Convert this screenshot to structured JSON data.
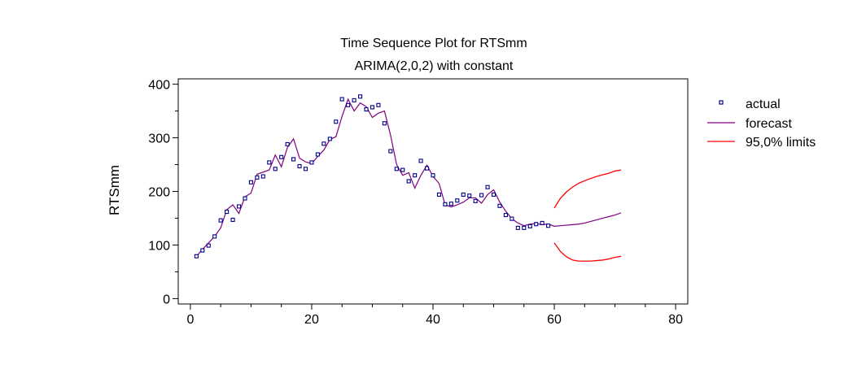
{
  "chart_data": {
    "type": "line",
    "title": "Time Sequence Plot for RTSmm",
    "subtitle": "ARIMA(2,0,2) with constant",
    "xlabel": "",
    "ylabel": "RTSmm",
    "xlim": [
      -2,
      82
    ],
    "ylim": [
      -10,
      410
    ],
    "x_ticks": [
      0,
      20,
      40,
      60,
      80
    ],
    "y_ticks": [
      0,
      100,
      200,
      300,
      400
    ],
    "x_tick_labels": [
      "0",
      "20",
      "40",
      "60",
      "80"
    ],
    "y_tick_labels": [
      "0",
      "100",
      "200",
      "300",
      "400"
    ],
    "grid": false,
    "legend_position": "right",
    "colors": {
      "actual": "#00008b",
      "forecast": "#800080",
      "limits": "#ff0000",
      "frame": "#000000"
    },
    "series": [
      {
        "name": "actual",
        "style": "markers",
        "x": [
          1,
          2,
          3,
          4,
          5,
          6,
          7,
          8,
          9,
          10,
          11,
          12,
          13,
          14,
          15,
          16,
          17,
          18,
          19,
          20,
          21,
          22,
          23,
          24,
          25,
          26,
          27,
          28,
          29,
          30,
          31,
          32,
          33,
          34,
          35,
          36,
          37,
          38,
          39,
          40,
          41,
          42,
          43,
          44,
          45,
          46,
          47,
          48,
          49,
          50,
          51,
          52,
          53,
          54,
          55,
          56,
          57,
          58,
          59
        ],
        "y": [
          79,
          90,
          99,
          116,
          146,
          162,
          147,
          172,
          187,
          217,
          226,
          228,
          254,
          242,
          264,
          288,
          260,
          247,
          242,
          254,
          269,
          289,
          298,
          330,
          372,
          361,
          370,
          377,
          353,
          357,
          361,
          327,
          275,
          242,
          240,
          219,
          230,
          257,
          243,
          230,
          194,
          176,
          177,
          183,
          194,
          192,
          182,
          193,
          208,
          194,
          173,
          156,
          149,
          132,
          132,
          135,
          139,
          141,
          136
        ]
      },
      {
        "name": "forecast",
        "style": "line",
        "x": [
          1,
          2,
          3,
          4,
          5,
          6,
          7,
          8,
          9,
          10,
          11,
          12,
          13,
          14,
          15,
          16,
          17,
          18,
          19,
          20,
          21,
          22,
          23,
          24,
          25,
          26,
          27,
          28,
          29,
          30,
          31,
          32,
          33,
          34,
          35,
          36,
          37,
          38,
          39,
          40,
          41,
          42,
          43,
          44,
          45,
          46,
          47,
          48,
          49,
          50,
          51,
          52,
          53,
          54,
          55,
          56,
          57,
          58,
          59,
          60,
          61,
          62,
          63,
          64,
          65,
          66,
          67,
          68,
          69,
          70,
          71
        ],
        "y": [
          79,
          92,
          104,
          116,
          132,
          166,
          175,
          159,
          190,
          197,
          232,
          236,
          240,
          268,
          246,
          282,
          298,
          262,
          255,
          252,
          265,
          277,
          297,
          302,
          340,
          372,
          350,
          365,
          358,
          338,
          346,
          350,
          305,
          250,
          230,
          235,
          206,
          230,
          249,
          228,
          215,
          175,
          171,
          175,
          180,
          188,
          188,
          178,
          194,
          203,
          180,
          163,
          149,
          141,
          136,
          139,
          140,
          138,
          139,
          135,
          136,
          137,
          138,
          139,
          141,
          144,
          147,
          150,
          153,
          156,
          160
        ]
      },
      {
        "name": "95,0% limits",
        "style": "line",
        "segments": [
          {
            "x": [
              60,
              61,
              62,
              63,
              64,
              65,
              66,
              67,
              68,
              69,
              70,
              71
            ],
            "y": [
              169,
              187,
              199,
              208,
              215,
              220,
              224,
              228,
              231,
              234,
              238,
              240
            ]
          },
          {
            "x": [
              60,
              61,
              62,
              63,
              64,
              65,
              66,
              67,
              68,
              69,
              70,
              71
            ],
            "y": [
              104,
              88,
              78,
              72,
              70,
              70,
              70,
              71,
              72,
              74,
              77,
              79
            ]
          }
        ]
      }
    ],
    "legend": [
      "actual",
      "forecast",
      "95,0% limits"
    ]
  }
}
